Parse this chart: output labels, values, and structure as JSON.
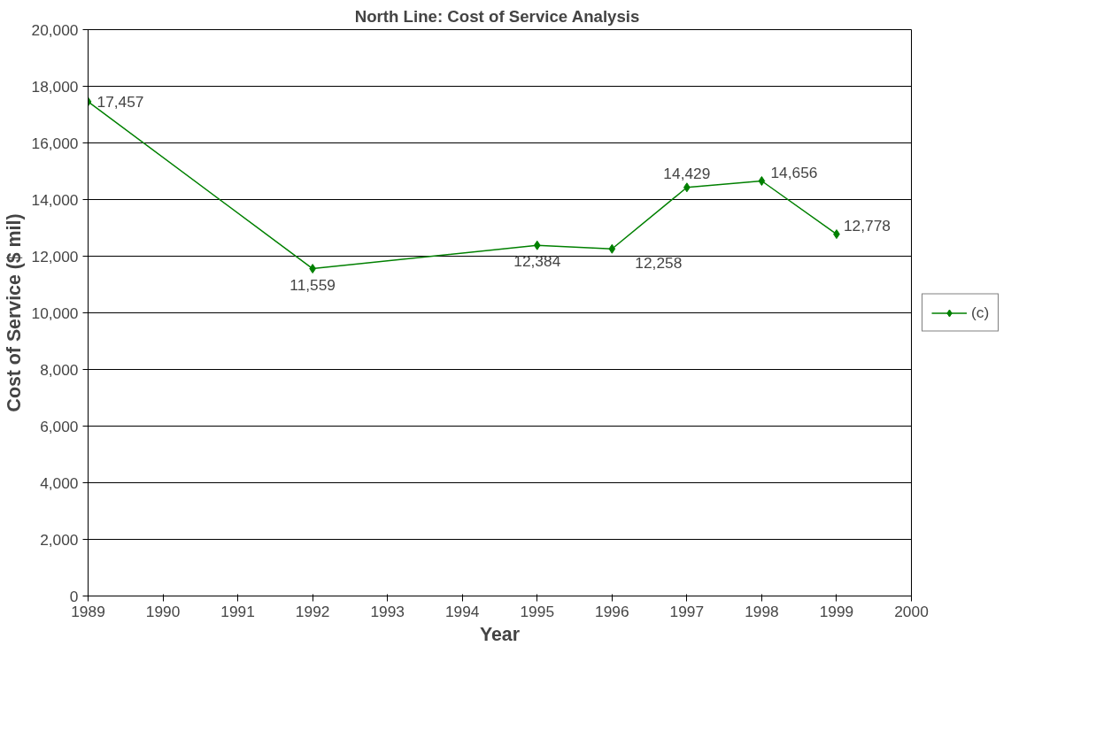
{
  "chart_data": {
    "type": "line",
    "title": "North Line:  Cost of Service Analysis",
    "xlabel": "Year",
    "ylabel": "Cost of Service ($ mil)",
    "x": [
      1989,
      1992,
      1995,
      1996,
      1997,
      1998,
      1999
    ],
    "series": [
      {
        "name": "(c)",
        "color": "#008000",
        "values": [
          17457,
          11559,
          12384,
          12258,
          14429,
          14656,
          12778
        ]
      }
    ],
    "xlim": [
      1989,
      2000
    ],
    "xticks": [
      1989,
      1990,
      1991,
      1992,
      1993,
      1994,
      1995,
      1996,
      1997,
      1998,
      1999,
      2000
    ],
    "ylim": [
      0,
      20000
    ],
    "yticks": [
      0,
      {
        "value": 2000,
        "label": "2,000"
      },
      {
        "value": 4000,
        "label": "4,000"
      },
      {
        "value": 6000,
        "label": "6,000"
      },
      {
        "value": 8000,
        "label": "8,000"
      },
      {
        "value": 10000,
        "label": "10,000"
      },
      {
        "value": 12000,
        "label": "12,000"
      },
      {
        "value": 14000,
        "label": "14,000"
      },
      {
        "value": 16000,
        "label": "16,000"
      },
      {
        "value": 18000,
        "label": "18,000"
      },
      {
        "value": 20000,
        "label": "20,000"
      }
    ],
    "value_labels": [
      "17,457",
      "11,559",
      "12,384",
      "12,258",
      "14,429",
      "14,656",
      "12,778"
    ],
    "grid": "y",
    "legend": "right",
    "marker": "diamond",
    "line_style": "solid"
  }
}
